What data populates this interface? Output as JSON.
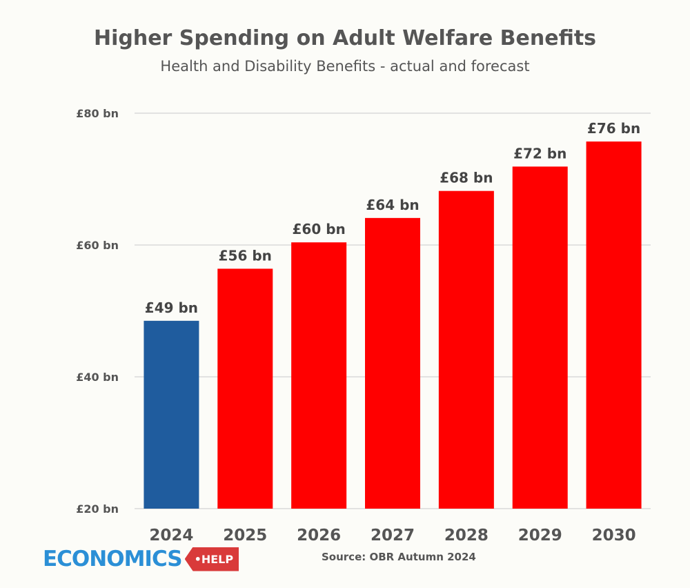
{
  "chart_data": {
    "type": "bar",
    "title": "Higher Spending on Adult Welfare Benefits",
    "subtitle": "Health and Disability Benefits - actual and forecast",
    "categories": [
      "2024",
      "2025",
      "2026",
      "2027",
      "2028",
      "2029",
      "2030"
    ],
    "values": [
      48.5,
      56.4,
      60.4,
      64.1,
      68.2,
      71.9,
      75.7
    ],
    "data_labels": [
      "£49 bn",
      "£56 bn",
      "£60 bn",
      "£64 bn",
      "£68 bn",
      "£72 bn",
      "£76 bn"
    ],
    "bar_colors": [
      "#1f5c9e",
      "#ff0000",
      "#ff0000",
      "#ff0000",
      "#ff0000",
      "#ff0000",
      "#ff0000"
    ],
    "yticks": [
      20,
      40,
      60,
      80
    ],
    "ytick_labels": [
      "£20 bn",
      "£40 bn",
      "£60 bn",
      "£80 bn"
    ],
    "ylim": [
      20,
      80
    ],
    "xlabel": "",
    "ylabel": "",
    "grid": true,
    "unit": "£ bn"
  },
  "source": "Source: OBR Autumn 2024",
  "logo": {
    "text": "ECONOMICS",
    "tag": "•HELP"
  }
}
